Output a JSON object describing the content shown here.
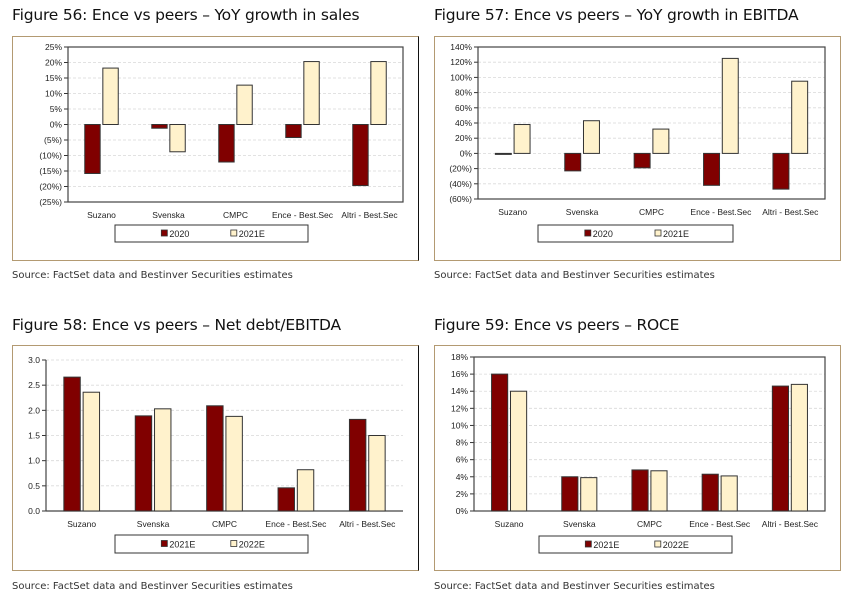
{
  "page": {
    "source_text": "Source: FactSet data and Bestinver Securities estimates"
  },
  "colors": {
    "series_dark": "#800000",
    "series_light": "#fff2cc",
    "bar_outline": "#333333",
    "frame": "#b39a72",
    "gridline": "#d9d9d9"
  },
  "chart_data": [
    {
      "id": "fig56",
      "type": "bar",
      "title": "Figure 56: Ence vs peers – YoY growth in sales",
      "xlabel": "",
      "ylabel": "",
      "categories": [
        "Suzano",
        "Svenska",
        "CMPC",
        "Ence - Best.Sec",
        "Altri - Best.Sec"
      ],
      "series": [
        {
          "name": "2020",
          "values": [
            -15.8,
            -1.2,
            -12.1,
            -4.2,
            -19.7
          ]
        },
        {
          "name": "2021E",
          "values": [
            18.2,
            -8.8,
            12.7,
            20.3,
            20.3
          ]
        }
      ],
      "ylim": [
        -25,
        25
      ],
      "ytick_step": 5,
      "ytick_format": "pct_paren",
      "yticks": [
        "(25%)",
        "(20%)",
        "(15%)",
        "(10%)",
        "(5%)",
        "0%",
        "5%",
        "10%",
        "15%",
        "20%",
        "25%"
      ],
      "grid": true,
      "legend": [
        "2020",
        "2021E"
      ],
      "legend_position": "bottom",
      "unit": "%"
    },
    {
      "id": "fig57",
      "type": "bar",
      "title": "Figure 57: Ence vs peers – YoY growth in EBITDA",
      "xlabel": "",
      "ylabel": "",
      "categories": [
        "Suzano",
        "Svenska",
        "CMPC",
        "Ence - Best.Sec",
        "Altri - Best.Sec"
      ],
      "series": [
        {
          "name": "2020",
          "values": [
            -1,
            -23,
            -19,
            -42,
            -47
          ]
        },
        {
          "name": "2021E",
          "values": [
            38,
            43,
            32,
            125,
            95
          ]
        }
      ],
      "ylim": [
        -60,
        140
      ],
      "ytick_step": 20,
      "ytick_format": "pct_paren",
      "yticks": [
        "(60%)",
        "(40%)",
        "(20%)",
        "0%",
        "20%",
        "40%",
        "60%",
        "80%",
        "100%",
        "120%",
        "140%"
      ],
      "grid": true,
      "legend": [
        "2020",
        "2021E"
      ],
      "legend_position": "bottom",
      "unit": "%"
    },
    {
      "id": "fig58",
      "type": "bar",
      "title": "Figure 58: Ence vs peers – Net debt/EBITDA",
      "xlabel": "",
      "ylabel": "",
      "categories": [
        "Suzano",
        "Svenska",
        "CMPC",
        "Ence - Best.Sec",
        "Altri - Best.Sec"
      ],
      "series": [
        {
          "name": "2021E",
          "values": [
            2.66,
            1.89,
            2.09,
            0.46,
            1.82
          ]
        },
        {
          "name": "2022E",
          "values": [
            2.36,
            2.03,
            1.88,
            0.82,
            1.5
          ]
        }
      ],
      "ylim": [
        0,
        3.0
      ],
      "ytick_step": 0.5,
      "ytick_format": "decimal1",
      "yticks": [
        "0.0",
        "0.5",
        "1.0",
        "1.5",
        "2.0",
        "2.5",
        "3.0"
      ],
      "grid": true,
      "legend": [
        "2021E",
        "2022E"
      ],
      "legend_position": "bottom",
      "unit": "x"
    },
    {
      "id": "fig59",
      "type": "bar",
      "title": "Figure 59: Ence vs peers – ROCE",
      "xlabel": "",
      "ylabel": "",
      "categories": [
        "Suzano",
        "Svenska",
        "CMPC",
        "Ence - Best.Sec",
        "Altri - Best.Sec"
      ],
      "series": [
        {
          "name": "2021E",
          "values": [
            16.0,
            4.0,
            4.8,
            4.3,
            14.6
          ]
        },
        {
          "name": "2022E",
          "values": [
            14.0,
            3.9,
            4.7,
            4.1,
            14.8
          ]
        }
      ],
      "ylim": [
        0,
        18
      ],
      "ytick_step": 2,
      "ytick_format": "pct",
      "yticks": [
        "0%",
        "2%",
        "4%",
        "6%",
        "8%",
        "10%",
        "12%",
        "14%",
        "16%",
        "18%"
      ],
      "grid": true,
      "legend": [
        "2021E",
        "2022E"
      ],
      "legend_position": "bottom",
      "unit": "%"
    }
  ]
}
